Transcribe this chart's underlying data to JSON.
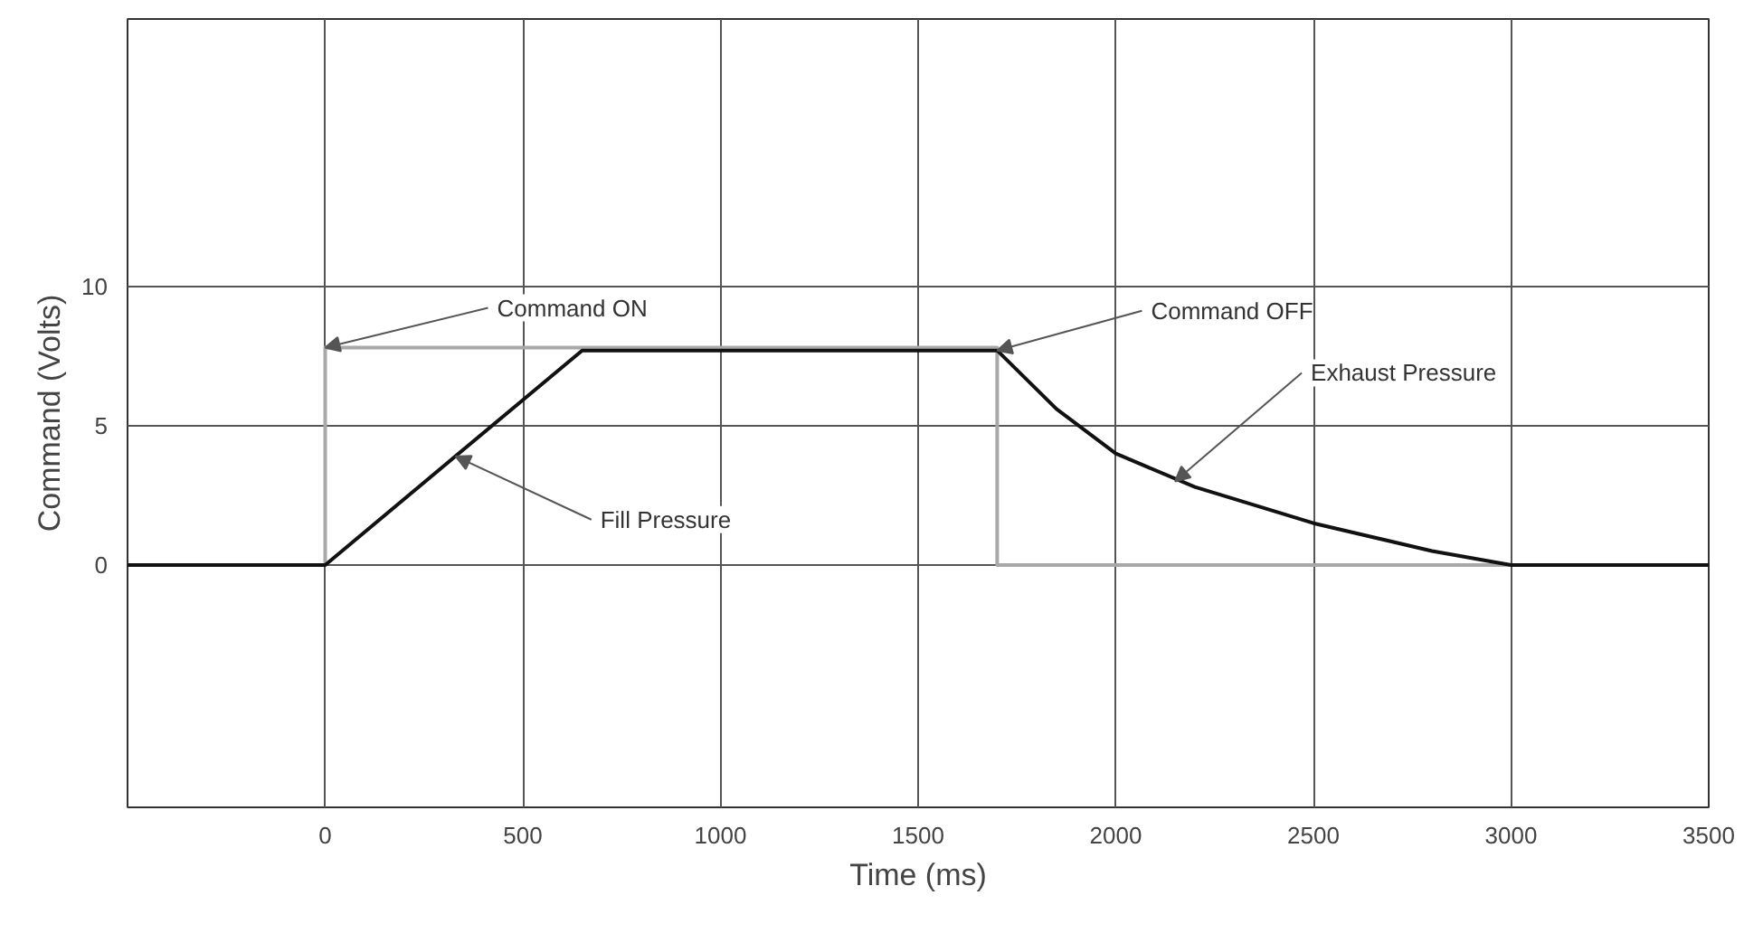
{
  "chart_data": {
    "type": "line",
    "xlabel": "Time (ms)",
    "ylabel": "Command (Volts)",
    "xlim": [
      -500,
      3500
    ],
    "ylim": [
      -8.7,
      19.6
    ],
    "xticks": [
      0,
      500,
      1000,
      1500,
      2000,
      2500,
      3000,
      3500
    ],
    "yticks": [
      0,
      5,
      10
    ],
    "grid": true,
    "marker": "none",
    "line_style": "solid",
    "series": [
      {
        "color": "#a8a8a8",
        "x": [
          -500,
          0,
          0,
          1700,
          1700,
          3500
        ],
        "values": [
          0,
          0,
          7.8,
          7.8,
          0,
          0
        ]
      },
      {
        "color": "#111111",
        "x": [
          -500,
          0,
          650,
          1700,
          1850,
          2000,
          2200,
          2500,
          2800,
          3000,
          3500
        ],
        "values": [
          0,
          0,
          7.7,
          7.7,
          5.6,
          4.0,
          2.8,
          1.5,
          0.5,
          0,
          0
        ]
      }
    ],
    "annotations": [
      {
        "text": "Command ON",
        "x": 0,
        "y": 7.8
      },
      {
        "text": "Fill Pressure",
        "x": 330,
        "y": 3.9
      },
      {
        "text": "Command OFF",
        "x": 1700,
        "y": 7.7
      },
      {
        "text": "Exhaust Pressure",
        "x": 2150,
        "y": 3.0
      }
    ]
  }
}
